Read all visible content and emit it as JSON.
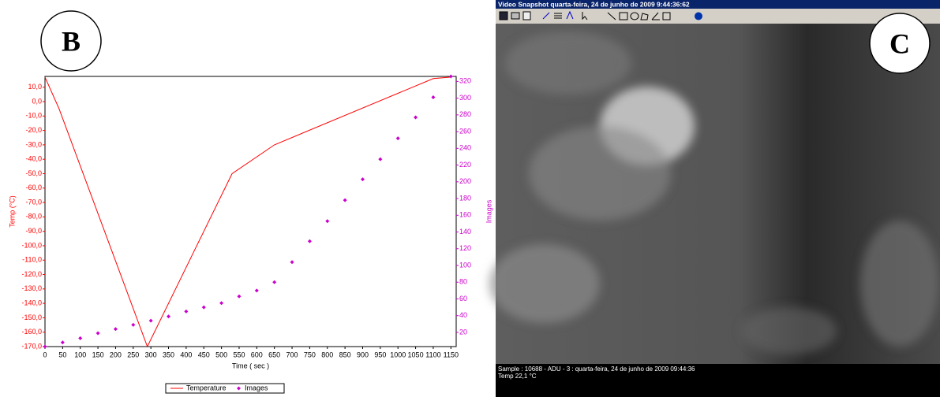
{
  "panels": {
    "left": "B",
    "right": "C"
  },
  "chart_data": {
    "type": "line",
    "x_label": "Time ( sec )",
    "y_label": "Temp (°C)",
    "y2_label": "Images",
    "xlim": [
      0,
      1165
    ],
    "xticks": [
      0,
      50,
      100,
      150,
      200,
      250,
      300,
      350,
      400,
      450,
      500,
      550,
      600,
      650,
      700,
      750,
      800,
      850,
      900,
      950,
      1000,
      1050,
      1100,
      1150
    ],
    "ylim": [
      -170,
      17.5
    ],
    "yticks": [
      {
        "value": 10,
        "label": "10,0"
      },
      {
        "value": 0,
        "label": "0,0"
      },
      {
        "value": -10,
        "label": "-10,0"
      },
      {
        "value": -20,
        "label": "-20,0"
      },
      {
        "value": -30,
        "label": "-30,0"
      },
      {
        "value": -40,
        "label": "-40,0"
      },
      {
        "value": -50,
        "label": "-50,0"
      },
      {
        "value": -60,
        "label": "-60,0"
      },
      {
        "value": -70,
        "label": "-70,0"
      },
      {
        "value": -80,
        "label": "-80,0"
      },
      {
        "value": -90,
        "label": "-90,0"
      },
      {
        "value": -100,
        "label": "-100,0"
      },
      {
        "value": -110,
        "label": "-110,0"
      },
      {
        "value": -120,
        "label": "-120,0"
      },
      {
        "value": -130,
        "label": "-130,0"
      },
      {
        "value": -140,
        "label": "-140,0"
      },
      {
        "value": -150,
        "label": "-150,0"
      },
      {
        "value": -160,
        "label": "-160,0"
      },
      {
        "value": -170,
        "label": "-170,0"
      }
    ],
    "y2lim": [
      3,
      326
    ],
    "y2ticks": [
      20,
      40,
      60,
      80,
      100,
      120,
      140,
      160,
      180,
      200,
      220,
      240,
      260,
      280,
      300,
      320
    ],
    "series": [
      {
        "name": "Temperature",
        "color": "#ff0000",
        "x": [
          0,
          40,
          290,
          530,
          650,
          1100,
          1150
        ],
        "values": [
          17,
          -5,
          -170,
          -50,
          -30,
          16,
          17
        ]
      },
      {
        "name": "Images",
        "color": "#cc00cc",
        "axis": "y2",
        "x": [
          0,
          50,
          100,
          150,
          200,
          250,
          300,
          350,
          400,
          450,
          500,
          550,
          600,
          650,
          700,
          750,
          800,
          850,
          900,
          950,
          1000,
          1050,
          1100,
          1150
        ],
        "values": [
          3,
          8,
          13,
          19,
          24,
          29,
          34,
          39,
          45,
          50,
          55,
          63,
          70,
          80,
          104,
          129,
          153,
          178,
          203,
          227,
          252,
          277,
          301,
          326
        ]
      }
    ]
  },
  "snapshot": {
    "window_title": "Video Snapshot quarta-feira, 24 de junho de 2009 9:44:36:62",
    "status_line1": "Sample : 10688 - ADU - 3 : quarta-feira, 24 de junho de 2009 09:44:36",
    "status_line2": "Temp 22,1 °C"
  }
}
